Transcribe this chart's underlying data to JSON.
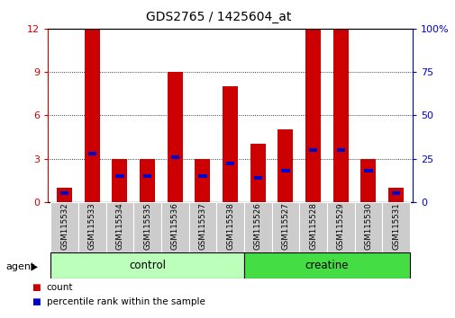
{
  "title": "GDS2765 / 1425604_at",
  "samples": [
    "GSM115532",
    "GSM115533",
    "GSM115534",
    "GSM115535",
    "GSM115536",
    "GSM115537",
    "GSM115538",
    "GSM115526",
    "GSM115527",
    "GSM115528",
    "GSM115529",
    "GSM115530",
    "GSM115531"
  ],
  "count_values": [
    1.0,
    12.0,
    3.0,
    3.0,
    9.0,
    3.0,
    8.0,
    4.0,
    5.0,
    12.0,
    12.0,
    3.0,
    1.0
  ],
  "percentile_values": [
    5.0,
    28.0,
    15.0,
    15.0,
    26.0,
    15.0,
    22.0,
    14.0,
    18.0,
    30.0,
    30.0,
    18.0,
    5.0
  ],
  "groups": [
    {
      "label": "control",
      "start": 0,
      "end": 7,
      "color": "#bbffbb"
    },
    {
      "label": "creatine",
      "start": 7,
      "end": 13,
      "color": "#44dd44"
    }
  ],
  "group_label": "agent",
  "left_ylim": [
    0,
    12
  ],
  "left_yticks": [
    0,
    3,
    6,
    9,
    12
  ],
  "right_ylim": [
    0,
    100
  ],
  "right_yticks": [
    0,
    25,
    50,
    75,
    100
  ],
  "right_yticklabels": [
    "0",
    "25",
    "50",
    "75",
    "100%"
  ],
  "bar_color": "#cc0000",
  "blue_color": "#0000cc",
  "bar_width": 0.55,
  "bg_color": "#ffffff",
  "tick_label_color_left": "#cc0000",
  "tick_label_color_right": "#0000cc",
  "grid_color": "#000000",
  "sample_bg_color": "#cccccc"
}
